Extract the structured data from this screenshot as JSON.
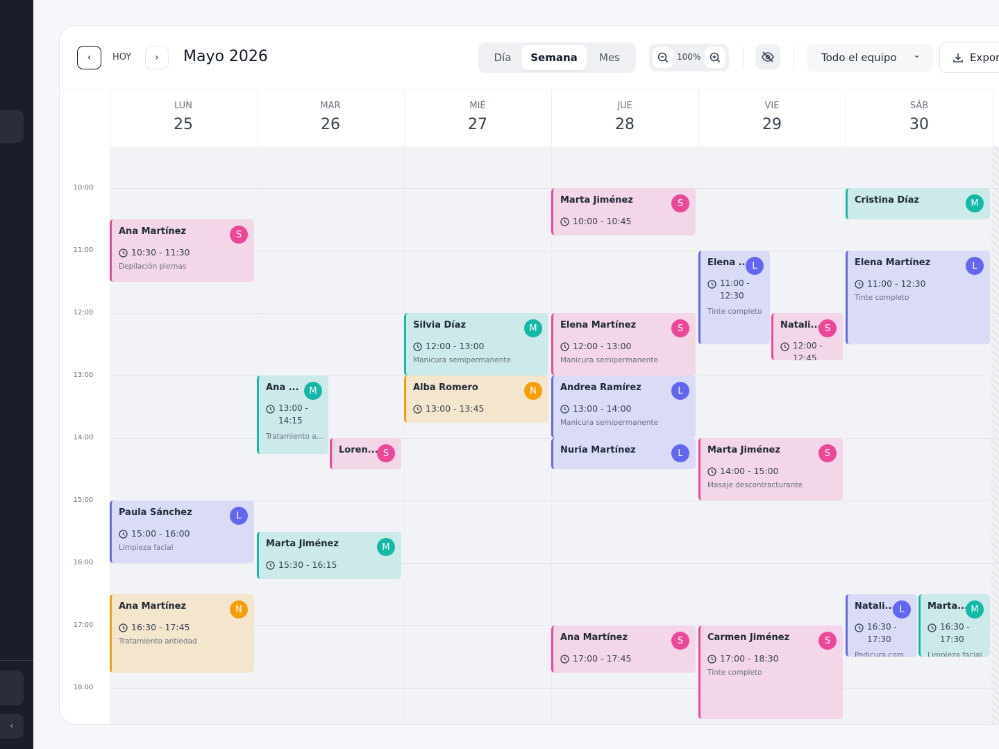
{
  "toolbar": {
    "today": "HOY",
    "title": "Mayo 2026",
    "views": [
      "Día",
      "Semana",
      "Mes"
    ],
    "active_view": 1,
    "zoom": "100%",
    "team": "Todo el equipo",
    "export": "Exportar"
  },
  "week": [
    {
      "day": "LUN",
      "date": "25"
    },
    {
      "day": "MAR",
      "date": "26"
    },
    {
      "day": "MIÉ",
      "date": "27"
    },
    {
      "day": "JUE",
      "date": "28"
    },
    {
      "day": "VIE",
      "date": "29"
    },
    {
      "day": "SÁB",
      "date": "30"
    }
  ],
  "times": [
    "10:00",
    "11:00",
    "12:00",
    "13:00",
    "14:00",
    "15:00",
    "16:00",
    "17:00",
    "18:00"
  ],
  "events": [
    {
      "name": "Ana Martínez",
      "avatar": "S",
      "color": "#ec4899",
      "time": "10:30 - 11:30",
      "service": "Depilación piernas"
    },
    {
      "name": "Paula Sánchez",
      "avatar": "L",
      "color": "#6366f1",
      "time": "15:00 - 16:00",
      "service": "Limpieza facial"
    },
    {
      "name": "Ana Martínez",
      "avatar": "N",
      "color": "#f59e0b",
      "time": "16:30 - 17:45",
      "service": "Tratamiento antiedad"
    },
    {
      "name": "Ana ...",
      "avatar": "M",
      "color": "#14b8a6",
      "time": "13:00 - 14:15",
      "service": "Tratamiento a..."
    },
    {
      "name": "Loren...",
      "avatar": "S",
      "color": "#ec4899"
    },
    {
      "name": "Marta Jiménez",
      "avatar": "M",
      "color": "#14b8a6",
      "time": "15:30 - 16:15"
    },
    {
      "name": "Silvia Díaz",
      "avatar": "M",
      "color": "#14b8a6",
      "time": "12:00 - 13:00",
      "service": "Manicura semipermanente"
    },
    {
      "name": "Alba Romero",
      "avatar": "N",
      "color": "#f59e0b",
      "time": "13:00 - 13:45"
    },
    {
      "name": "Marta Jiménez",
      "avatar": "S",
      "color": "#ec4899",
      "time": "10:00 - 10:45"
    },
    {
      "name": "Elena Martínez",
      "avatar": "S",
      "color": "#ec4899",
      "time": "12:00 - 13:00",
      "service": "Manicura semipermanente"
    },
    {
      "name": "Andrea Ramírez",
      "avatar": "L",
      "color": "#6366f1",
      "time": "13:00 - 14:00",
      "service": "Manicura semipermanente"
    },
    {
      "name": "Nuria Martínez",
      "avatar": "L",
      "color": "#6366f1"
    },
    {
      "name": "Ana Martínez",
      "avatar": "S",
      "color": "#ec4899",
      "time": "17:00 - 17:45"
    },
    {
      "name": "Elena ...",
      "avatar": "L",
      "color": "#6366f1",
      "time": "11:00 - 12:30",
      "service": "Tinte completo"
    },
    {
      "name": "Natali...",
      "avatar": "S",
      "color": "#ec4899",
      "time": "12:00 - 12:45"
    },
    {
      "name": "Marta Jiménez",
      "avatar": "S",
      "color": "#ec4899",
      "time": "14:00 - 15:00",
      "service": "Masaje descontracturante"
    },
    {
      "name": "Carmen Jiménez",
      "avatar": "S",
      "color": "#ec4899",
      "time": "17:00 - 18:30",
      "service": "Tinte completo"
    },
    {
      "name": "Cristina Díaz",
      "avatar": "M",
      "color": "#14b8a6"
    },
    {
      "name": "Elena Martínez",
      "avatar": "L",
      "color": "#6366f1",
      "time": "11:00 - 12:30",
      "service": "Tinte completo"
    },
    {
      "name": "Natali...",
      "avatar": "L",
      "color": "#6366f1",
      "time": "16:30 - 17:30",
      "service": "Pedicura com..."
    },
    {
      "name": "Marta...",
      "avatar": "M",
      "color": "#14b8a6",
      "time": "16:30 - 17:30",
      "service": "Limpieza facial"
    }
  ]
}
